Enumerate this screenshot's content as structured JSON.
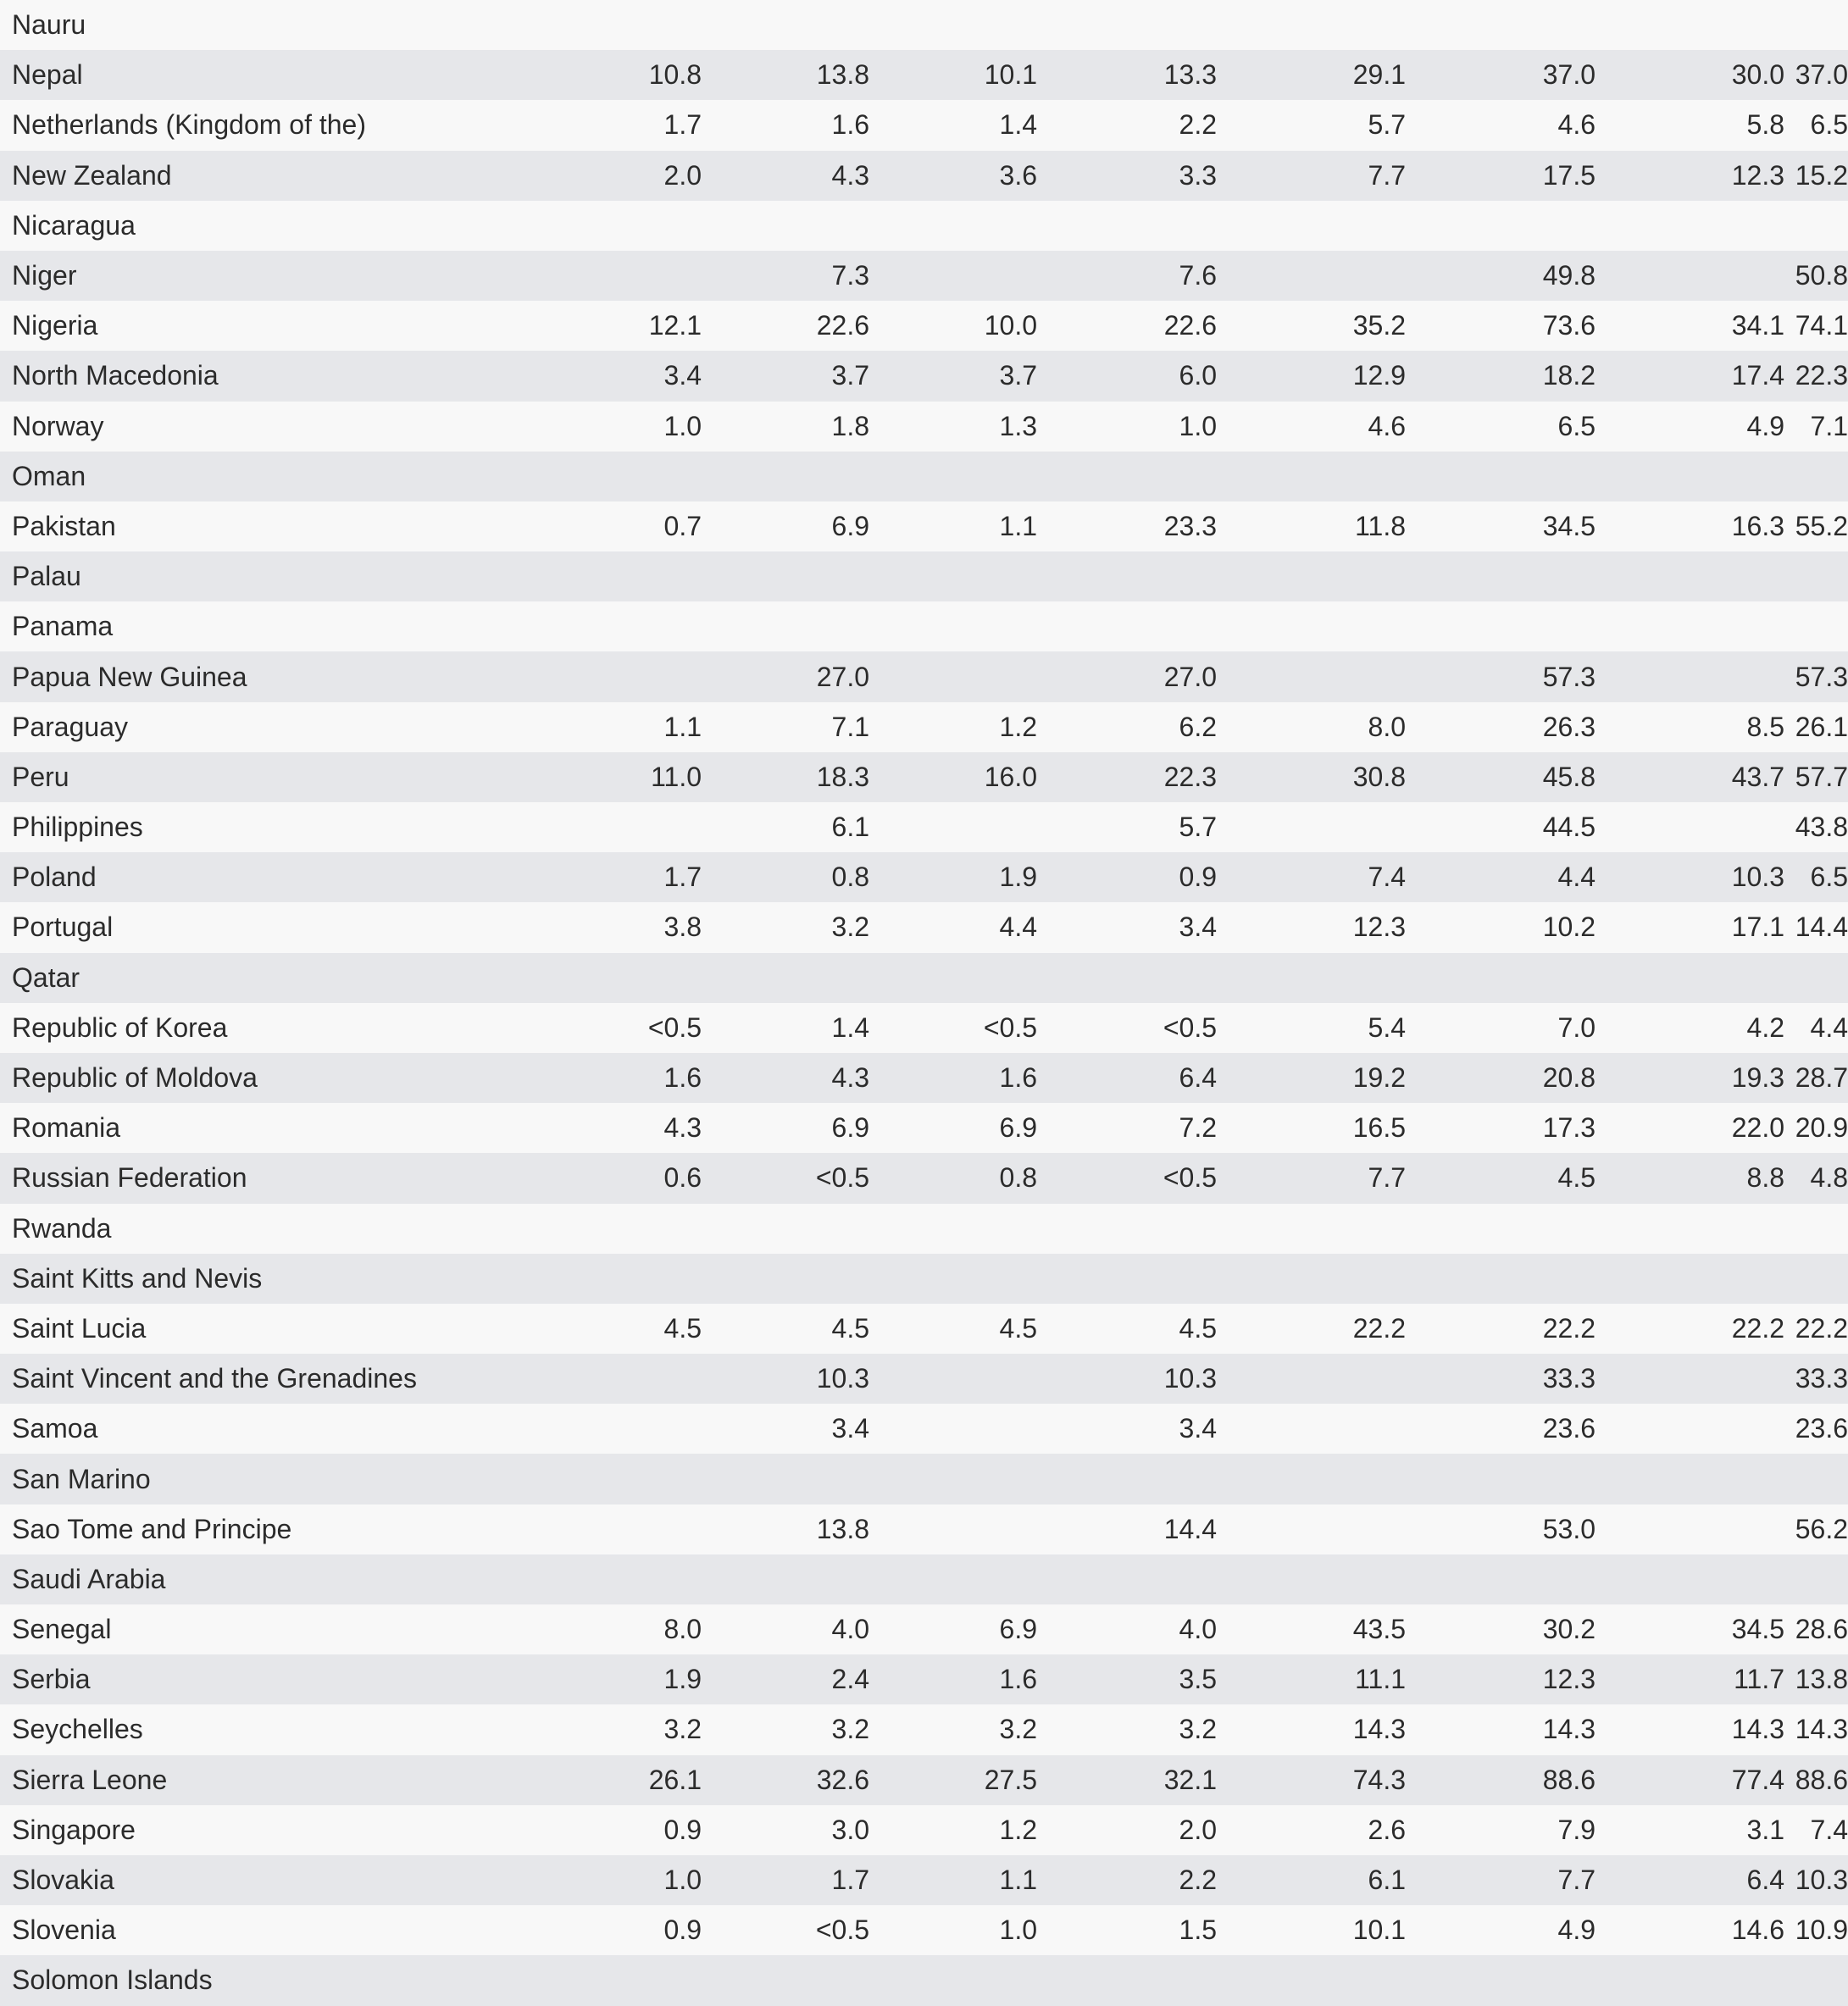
{
  "rows": [
    {
      "country": "Nauru",
      "values": [
        "",
        "",
        "",
        "",
        "",
        "",
        "",
        ""
      ]
    },
    {
      "country": "Nepal",
      "values": [
        "10.8",
        "13.8",
        "10.1",
        "13.3",
        "29.1",
        "37.0",
        "30.0",
        "37.0"
      ]
    },
    {
      "country": "Netherlands (Kingdom of the)",
      "values": [
        "1.7",
        "1.6",
        "1.4",
        "2.2",
        "5.7",
        "4.6",
        "5.8",
        "6.5"
      ]
    },
    {
      "country": "New Zealand",
      "values": [
        "2.0",
        "4.3",
        "3.6",
        "3.3",
        "7.7",
        "17.5",
        "12.3",
        "15.2"
      ]
    },
    {
      "country": "Nicaragua",
      "values": [
        "",
        "",
        "",
        "",
        "",
        "",
        "",
        ""
      ]
    },
    {
      "country": "Niger",
      "values": [
        "",
        "7.3",
        "",
        "7.6",
        "",
        "49.8",
        "",
        "50.8"
      ]
    },
    {
      "country": "Nigeria",
      "values": [
        "12.1",
        "22.6",
        "10.0",
        "22.6",
        "35.2",
        "73.6",
        "34.1",
        "74.1"
      ]
    },
    {
      "country": "North Macedonia",
      "values": [
        "3.4",
        "3.7",
        "3.7",
        "6.0",
        "12.9",
        "18.2",
        "17.4",
        "22.3"
      ]
    },
    {
      "country": "Norway",
      "values": [
        "1.0",
        "1.8",
        "1.3",
        "1.0",
        "4.6",
        "6.5",
        "4.9",
        "7.1"
      ]
    },
    {
      "country": "Oman",
      "values": [
        "",
        "",
        "",
        "",
        "",
        "",
        "",
        ""
      ]
    },
    {
      "country": "Pakistan",
      "values": [
        "0.7",
        "6.9",
        "1.1",
        "23.3",
        "11.8",
        "34.5",
        "16.3",
        "55.2"
      ]
    },
    {
      "country": "Palau",
      "values": [
        "",
        "",
        "",
        "",
        "",
        "",
        "",
        ""
      ]
    },
    {
      "country": "Panama",
      "values": [
        "",
        "",
        "",
        "",
        "",
        "",
        "",
        ""
      ]
    },
    {
      "country": "Papua New Guinea",
      "values": [
        "",
        "27.0",
        "",
        "27.0",
        "",
        "57.3",
        "",
        "57.3"
      ]
    },
    {
      "country": "Paraguay",
      "values": [
        "1.1",
        "7.1",
        "1.2",
        "6.2",
        "8.0",
        "26.3",
        "8.5",
        "26.1"
      ]
    },
    {
      "country": "Peru",
      "values": [
        "11.0",
        "18.3",
        "16.0",
        "22.3",
        "30.8",
        "45.8",
        "43.7",
        "57.7"
      ]
    },
    {
      "country": "Philippines",
      "values": [
        "",
        "6.1",
        "",
        "5.7",
        "",
        "44.5",
        "",
        "43.8"
      ]
    },
    {
      "country": "Poland",
      "values": [
        "1.7",
        "0.8",
        "1.9",
        "0.9",
        "7.4",
        "4.4",
        "10.3",
        "6.5"
      ]
    },
    {
      "country": "Portugal",
      "values": [
        "3.8",
        "3.2",
        "4.4",
        "3.4",
        "12.3",
        "10.2",
        "17.1",
        "14.4"
      ]
    },
    {
      "country": "Qatar",
      "values": [
        "",
        "",
        "",
        "",
        "",
        "",
        "",
        ""
      ]
    },
    {
      "country": "Republic of Korea",
      "values": [
        "<0.5",
        "1.4",
        "<0.5",
        "<0.5",
        "5.4",
        "7.0",
        "4.2",
        "4.4"
      ]
    },
    {
      "country": "Republic of Moldova",
      "values": [
        "1.6",
        "4.3",
        "1.6",
        "6.4",
        "19.2",
        "20.8",
        "19.3",
        "28.7"
      ]
    },
    {
      "country": "Romania",
      "values": [
        "4.3",
        "6.9",
        "6.9",
        "7.2",
        "16.5",
        "17.3",
        "22.0",
        "20.9"
      ]
    },
    {
      "country": "Russian Federation",
      "values": [
        "0.6",
        "<0.5",
        "0.8",
        "<0.5",
        "7.7",
        "4.5",
        "8.8",
        "4.8"
      ]
    },
    {
      "country": "Rwanda",
      "values": [
        "",
        "",
        "",
        "",
        "",
        "",
        "",
        ""
      ]
    },
    {
      "country": "Saint Kitts and Nevis",
      "values": [
        "",
        "",
        "",
        "",
        "",
        "",
        "",
        ""
      ]
    },
    {
      "country": "Saint Lucia",
      "values": [
        "4.5",
        "4.5",
        "4.5",
        "4.5",
        "22.2",
        "22.2",
        "22.2",
        "22.2"
      ]
    },
    {
      "country": "Saint Vincent and the Grenadines",
      "values": [
        "",
        "10.3",
        "",
        "10.3",
        "",
        "33.3",
        "",
        "33.3"
      ]
    },
    {
      "country": "Samoa",
      "values": [
        "",
        "3.4",
        "",
        "3.4",
        "",
        "23.6",
        "",
        "23.6"
      ]
    },
    {
      "country": "San Marino",
      "values": [
        "",
        "",
        "",
        "",
        "",
        "",
        "",
        ""
      ]
    },
    {
      "country": "Sao Tome and Principe",
      "values": [
        "",
        "13.8",
        "",
        "14.4",
        "",
        "53.0",
        "",
        "56.2"
      ]
    },
    {
      "country": "Saudi Arabia",
      "values": [
        "",
        "",
        "",
        "",
        "",
        "",
        "",
        ""
      ]
    },
    {
      "country": "Senegal",
      "values": [
        "8.0",
        "4.0",
        "6.9",
        "4.0",
        "43.5",
        "30.2",
        "34.5",
        "28.6"
      ]
    },
    {
      "country": "Serbia",
      "values": [
        "1.9",
        "2.4",
        "1.6",
        "3.5",
        "11.1",
        "12.3",
        "11.7",
        "13.8"
      ]
    },
    {
      "country": "Seychelles",
      "values": [
        "3.2",
        "3.2",
        "3.2",
        "3.2",
        "14.3",
        "14.3",
        "14.3",
        "14.3"
      ]
    },
    {
      "country": "Sierra Leone",
      "values": [
        "26.1",
        "32.6",
        "27.5",
        "32.1",
        "74.3",
        "88.6",
        "77.4",
        "88.6"
      ]
    },
    {
      "country": "Singapore",
      "values": [
        "0.9",
        "3.0",
        "1.2",
        "2.0",
        "2.6",
        "7.9",
        "3.1",
        "7.4"
      ]
    },
    {
      "country": "Slovakia",
      "values": [
        "1.0",
        "1.7",
        "1.1",
        "2.2",
        "6.1",
        "7.7",
        "6.4",
        "10.3"
      ]
    },
    {
      "country": "Slovenia",
      "values": [
        "0.9",
        "<0.5",
        "1.0",
        "1.5",
        "10.1",
        "4.9",
        "14.6",
        "10.9"
      ]
    },
    {
      "country": "Solomon Islands",
      "values": [
        "",
        "",
        "",
        "",
        "",
        "",
        "",
        ""
      ]
    }
  ]
}
